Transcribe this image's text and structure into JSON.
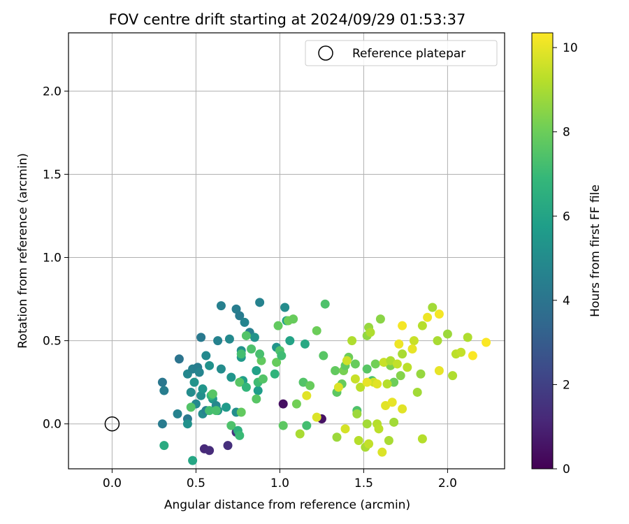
{
  "chart_data": {
    "type": "scatter",
    "title": "FOV centre drift starting at 2024/09/29 01:53:37",
    "xlabel": "Angular distance from reference (arcmin)",
    "ylabel": "Rotation from reference (arcmin)",
    "xlim": [
      -0.26,
      2.34
    ],
    "ylim": [
      -0.27,
      2.35
    ],
    "xticks": [
      "0.0",
      "0.5",
      "1.0",
      "1.5",
      "2.0"
    ],
    "yticks": [
      "0.0",
      "0.5",
      "1.0",
      "1.5",
      "2.0"
    ],
    "grid": true,
    "legend": {
      "placement": "top-right",
      "label": "Reference platepar"
    },
    "reference_point": {
      "x": 0.0,
      "y": 0.0
    },
    "colorbar": {
      "label": "Hours from first FF file",
      "colormap": "viridis",
      "range": [
        0,
        10.35
      ],
      "ticks": [
        "0",
        "2",
        "4",
        "6",
        "8",
        "10"
      ]
    },
    "colormap_stops": [
      "#440154",
      "#482878",
      "#3e4989",
      "#31688e",
      "#26828e",
      "#1f9e89",
      "#35b779",
      "#6ece58",
      "#b5de2b",
      "#fde725"
    ],
    "points": [
      {
        "x": 0.55,
        "y": -0.15,
        "h": 1.2
      },
      {
        "x": 0.58,
        "y": -0.16,
        "h": 1.3
      },
      {
        "x": 0.69,
        "y": -0.13,
        "h": 1.4
      },
      {
        "x": 0.74,
        "y": -0.05,
        "h": 1.5
      },
      {
        "x": 1.02,
        "y": 0.12,
        "h": 0.4
      },
      {
        "x": 1.25,
        "y": 0.03,
        "h": 0.5
      },
      {
        "x": 0.3,
        "y": 0.0,
        "h": 4.3
      },
      {
        "x": 0.3,
        "y": 0.25,
        "h": 4.1
      },
      {
        "x": 0.31,
        "y": 0.2,
        "h": 4.4
      },
      {
        "x": 0.39,
        "y": 0.06,
        "h": 4.6
      },
      {
        "x": 0.4,
        "y": 0.39,
        "h": 4.0
      },
      {
        "x": 0.45,
        "y": 0.3,
        "h": 4.8
      },
      {
        "x": 0.45,
        "y": 0.03,
        "h": 4.2
      },
      {
        "x": 0.45,
        "y": 0.0,
        "h": 5.2
      },
      {
        "x": 0.47,
        "y": 0.19,
        "h": 5.0
      },
      {
        "x": 0.48,
        "y": 0.33,
        "h": 4.5
      },
      {
        "x": 0.49,
        "y": 0.25,
        "h": 5.3
      },
      {
        "x": 0.5,
        "y": 0.12,
        "h": 4.9
      },
      {
        "x": 0.51,
        "y": 0.34,
        "h": 4.4
      },
      {
        "x": 0.52,
        "y": 0.31,
        "h": 4.7
      },
      {
        "x": 0.53,
        "y": 0.17,
        "h": 5.1
      },
      {
        "x": 0.53,
        "y": 0.52,
        "h": 4.2
      },
      {
        "x": 0.54,
        "y": 0.21,
        "h": 5.4
      },
      {
        "x": 0.54,
        "y": 0.06,
        "h": 5.0
      },
      {
        "x": 0.56,
        "y": 0.08,
        "h": 4.6
      },
      {
        "x": 0.56,
        "y": 0.41,
        "h": 4.9
      },
      {
        "x": 0.58,
        "y": 0.35,
        "h": 5.2
      },
      {
        "x": 0.6,
        "y": 0.15,
        "h": 5.5
      },
      {
        "x": 0.62,
        "y": 0.11,
        "h": 4.8
      },
      {
        "x": 0.63,
        "y": 0.08,
        "h": 5.3
      },
      {
        "x": 0.63,
        "y": 0.5,
        "h": 4.6
      },
      {
        "x": 0.65,
        "y": 0.71,
        "h": 4.5
      },
      {
        "x": 0.65,
        "y": 0.33,
        "h": 5.0
      },
      {
        "x": 0.68,
        "y": 0.1,
        "h": 5.6
      },
      {
        "x": 0.7,
        "y": 0.51,
        "h": 4.9
      },
      {
        "x": 0.71,
        "y": 0.28,
        "h": 5.4
      },
      {
        "x": 0.74,
        "y": 0.69,
        "h": 4.4
      },
      {
        "x": 0.74,
        "y": 0.07,
        "h": 5.1
      },
      {
        "x": 0.76,
        "y": 0.65,
        "h": 4.3
      },
      {
        "x": 0.77,
        "y": 0.44,
        "h": 5.2
      },
      {
        "x": 0.77,
        "y": 0.4,
        "h": 5.6
      },
      {
        "x": 0.78,
        "y": 0.26,
        "h": 5.8
      },
      {
        "x": 0.79,
        "y": 0.61,
        "h": 4.7
      },
      {
        "x": 0.82,
        "y": 0.55,
        "h": 4.5
      },
      {
        "x": 0.85,
        "y": 0.52,
        "h": 5.3
      },
      {
        "x": 0.88,
        "y": 0.73,
        "h": 4.6
      },
      {
        "x": 0.86,
        "y": 0.32,
        "h": 5.9
      },
      {
        "x": 0.87,
        "y": 0.2,
        "h": 5.7
      },
      {
        "x": 0.98,
        "y": 0.46,
        "h": 5.4
      },
      {
        "x": 1.03,
        "y": 0.7,
        "h": 5.0
      },
      {
        "x": 1.04,
        "y": 0.62,
        "h": 5.8
      },
      {
        "x": 1.06,
        "y": 0.5,
        "h": 6.0
      },
      {
        "x": 1.15,
        "y": 0.48,
        "h": 6.2
      },
      {
        "x": 0.31,
        "y": -0.13,
        "h": 6.3
      },
      {
        "x": 0.48,
        "y": -0.22,
        "h": 6.1
      },
      {
        "x": 0.47,
        "y": 0.1,
        "h": 7.5
      },
      {
        "x": 0.58,
        "y": 0.08,
        "h": 7.2
      },
      {
        "x": 0.59,
        "y": 0.17,
        "h": 6.9
      },
      {
        "x": 0.6,
        "y": 0.18,
        "h": 7.6
      },
      {
        "x": 0.62,
        "y": 0.08,
        "h": 7.3
      },
      {
        "x": 0.71,
        "y": -0.01,
        "h": 7.4
      },
      {
        "x": 0.75,
        "y": -0.04,
        "h": 6.6
      },
      {
        "x": 0.76,
        "y": -0.07,
        "h": 7.0
      },
      {
        "x": 0.77,
        "y": 0.07,
        "h": 7.8
      },
      {
        "x": 0.76,
        "y": 0.25,
        "h": 7.6
      },
      {
        "x": 0.77,
        "y": 0.42,
        "h": 7.2
      },
      {
        "x": 0.8,
        "y": 0.22,
        "h": 6.8
      },
      {
        "x": 0.8,
        "y": 0.53,
        "h": 7.5
      },
      {
        "x": 0.83,
        "y": 0.45,
        "h": 7.4
      },
      {
        "x": 0.86,
        "y": 0.15,
        "h": 7.6
      },
      {
        "x": 0.87,
        "y": 0.25,
        "h": 7.1
      },
      {
        "x": 0.89,
        "y": 0.38,
        "h": 7.8
      },
      {
        "x": 0.88,
        "y": 0.42,
        "h": 7.3
      },
      {
        "x": 0.9,
        "y": 0.27,
        "h": 7.5
      },
      {
        "x": 0.97,
        "y": 0.3,
        "h": 6.7
      },
      {
        "x": 0.98,
        "y": 0.37,
        "h": 7.9
      },
      {
        "x": 1.0,
        "y": 0.44,
        "h": 7.4
      },
      {
        "x": 0.99,
        "y": 0.59,
        "h": 7.8
      },
      {
        "x": 1.01,
        "y": 0.41,
        "h": 7.1
      },
      {
        "x": 1.02,
        "y": -0.01,
        "h": 7.7
      },
      {
        "x": 1.05,
        "y": 0.62,
        "h": 8.0
      },
      {
        "x": 1.08,
        "y": 0.63,
        "h": 7.9
      },
      {
        "x": 1.1,
        "y": 0.12,
        "h": 8.1
      },
      {
        "x": 1.14,
        "y": 0.25,
        "h": 7.5
      },
      {
        "x": 1.16,
        "y": -0.01,
        "h": 7.2
      },
      {
        "x": 1.18,
        "y": 0.23,
        "h": 7.9
      },
      {
        "x": 1.22,
        "y": 0.56,
        "h": 8.0
      },
      {
        "x": 1.26,
        "y": 0.41,
        "h": 7.6
      },
      {
        "x": 1.27,
        "y": 0.72,
        "h": 7.4
      },
      {
        "x": 1.33,
        "y": 0.32,
        "h": 7.8
      },
      {
        "x": 1.34,
        "y": 0.19,
        "h": 7.7
      },
      {
        "x": 1.37,
        "y": 0.24,
        "h": 7.9
      },
      {
        "x": 1.38,
        "y": 0.32,
        "h": 8.2
      },
      {
        "x": 1.39,
        "y": 0.35,
        "h": 7.8
      },
      {
        "x": 1.41,
        "y": 0.4,
        "h": 8.0
      },
      {
        "x": 1.45,
        "y": 0.36,
        "h": 7.9
      },
      {
        "x": 1.46,
        "y": 0.08,
        "h": 7.4
      },
      {
        "x": 1.52,
        "y": 0.33,
        "h": 7.6
      },
      {
        "x": 1.55,
        "y": 0.26,
        "h": 7.3
      },
      {
        "x": 1.57,
        "y": 0.36,
        "h": 8.1
      },
      {
        "x": 1.6,
        "y": 0.63,
        "h": 8.5
      },
      {
        "x": 1.66,
        "y": 0.35,
        "h": 8.3
      },
      {
        "x": 1.68,
        "y": 0.25,
        "h": 8.0
      },
      {
        "x": 1.72,
        "y": 0.29,
        "h": 8.4
      },
      {
        "x": 1.84,
        "y": 0.3,
        "h": 8.7
      },
      {
        "x": 1.82,
        "y": 0.19,
        "h": 8.9
      },
      {
        "x": 1.52,
        "y": 0.53,
        "h": 8.6
      },
      {
        "x": 1.34,
        "y": -0.08,
        "h": 8.8
      },
      {
        "x": 1.12,
        "y": -0.06,
        "h": 9.0
      },
      {
        "x": 1.43,
        "y": 0.5,
        "h": 9.1
      },
      {
        "x": 1.46,
        "y": 0.06,
        "h": 8.8
      },
      {
        "x": 1.47,
        "y": -0.1,
        "h": 9.2
      },
      {
        "x": 1.51,
        "y": -0.14,
        "h": 9.0
      },
      {
        "x": 1.52,
        "y": 0.0,
        "h": 8.9
      },
      {
        "x": 1.53,
        "y": -0.12,
        "h": 9.4
      },
      {
        "x": 1.53,
        "y": 0.58,
        "h": 8.7
      },
      {
        "x": 1.54,
        "y": 0.55,
        "h": 9.1
      },
      {
        "x": 1.56,
        "y": 0.25,
        "h": 9.6
      },
      {
        "x": 1.58,
        "y": 0.0,
        "h": 9.2
      },
      {
        "x": 1.59,
        "y": -0.03,
        "h": 9.3
      },
      {
        "x": 1.62,
        "y": 0.37,
        "h": 9.5
      },
      {
        "x": 1.64,
        "y": 0.24,
        "h": 9.2
      },
      {
        "x": 1.65,
        "y": -0.1,
        "h": 9.0
      },
      {
        "x": 1.66,
        "y": 0.38,
        "h": 9.1
      },
      {
        "x": 1.68,
        "y": 0.01,
        "h": 8.9
      },
      {
        "x": 1.7,
        "y": 0.36,
        "h": 9.4
      },
      {
        "x": 1.73,
        "y": 0.42,
        "h": 9.0
      },
      {
        "x": 1.76,
        "y": 0.34,
        "h": 9.3
      },
      {
        "x": 1.8,
        "y": 0.5,
        "h": 9.5
      },
      {
        "x": 1.85,
        "y": 0.59,
        "h": 9.2
      },
      {
        "x": 1.91,
        "y": 0.7,
        "h": 8.9
      },
      {
        "x": 1.94,
        "y": 0.5,
        "h": 9.0
      },
      {
        "x": 2.0,
        "y": 0.54,
        "h": 8.8
      },
      {
        "x": 2.03,
        "y": 0.29,
        "h": 9.1
      },
      {
        "x": 2.05,
        "y": 0.42,
        "h": 9.3
      },
      {
        "x": 2.08,
        "y": 0.43,
        "h": 9.4
      },
      {
        "x": 2.12,
        "y": 0.52,
        "h": 9.1
      },
      {
        "x": 1.85,
        "y": -0.09,
        "h": 9.2
      },
      {
        "x": 1.4,
        "y": 0.38,
        "h": 9.6
      },
      {
        "x": 1.45,
        "y": 0.27,
        "h": 9.5
      },
      {
        "x": 1.48,
        "y": 0.22,
        "h": 9.3
      },
      {
        "x": 1.35,
        "y": 0.22,
        "h": 9.8
      },
      {
        "x": 1.39,
        "y": -0.03,
        "h": 9.7
      },
      {
        "x": 1.16,
        "y": 0.17,
        "h": 9.9
      },
      {
        "x": 1.22,
        "y": 0.04,
        "h": 9.8
      },
      {
        "x": 1.52,
        "y": 0.25,
        "h": 10.0
      },
      {
        "x": 1.58,
        "y": 0.24,
        "h": 9.9
      },
      {
        "x": 1.61,
        "y": -0.17,
        "h": 9.8
      },
      {
        "x": 1.63,
        "y": 0.11,
        "h": 9.9
      },
      {
        "x": 1.67,
        "y": 0.13,
        "h": 10.0
      },
      {
        "x": 1.71,
        "y": 0.48,
        "h": 10.1
      },
      {
        "x": 1.73,
        "y": 0.09,
        "h": 9.9
      },
      {
        "x": 1.73,
        "y": 0.59,
        "h": 10.2
      },
      {
        "x": 1.79,
        "y": 0.45,
        "h": 10.0
      },
      {
        "x": 1.88,
        "y": 0.64,
        "h": 10.1
      },
      {
        "x": 1.95,
        "y": 0.66,
        "h": 10.2
      },
      {
        "x": 1.95,
        "y": 0.32,
        "h": 10.0
      },
      {
        "x": 2.15,
        "y": 0.41,
        "h": 10.3
      },
      {
        "x": 2.23,
        "y": 0.49,
        "h": 10.3
      }
    ]
  }
}
